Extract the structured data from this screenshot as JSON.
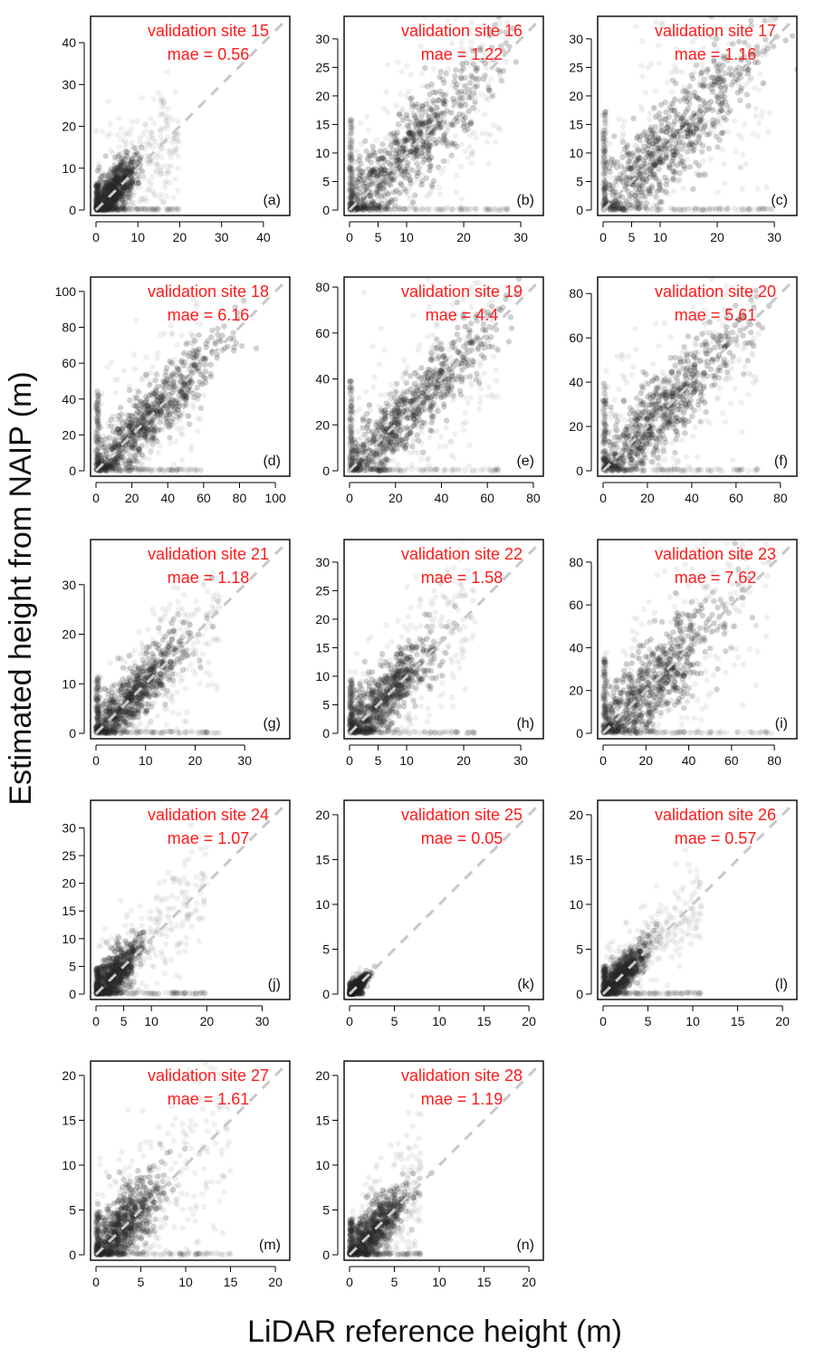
{
  "figure": {
    "ylabel": "Estimated height from NAIP (m)",
    "xlabel": "LiDAR reference height (m)",
    "annotation_color": "#ff1a1a",
    "point_color": "#2b2b2b",
    "identity_line_color": "#c8c8c8"
  },
  "chart_data": [
    {
      "type": "scatter",
      "panel": "(a)",
      "site_label": "validation site 15",
      "mae_label": "mae = 0.56",
      "site": 15,
      "mae": 0.56,
      "xlim": [
        0,
        45
      ],
      "ylim": [
        0,
        45
      ],
      "xticks": [
        0,
        10,
        20,
        30,
        40
      ],
      "yticks": [
        0,
        10,
        20,
        30,
        40
      ],
      "identity_line": true,
      "cluster": {
        "x_mean": 4,
        "spread": 3,
        "tail_x": 20
      }
    },
    {
      "type": "scatter",
      "panel": "(b)",
      "site_label": "validation site 16",
      "mae_label": "mae = 1.22",
      "site": 16,
      "mae": 1.22,
      "xlim": [
        0,
        33
      ],
      "ylim": [
        0,
        33
      ],
      "xticks": [
        0,
        5,
        10,
        20,
        30
      ],
      "yticks": [
        0,
        5,
        10,
        15,
        20,
        25,
        30
      ],
      "identity_line": true,
      "cluster": {
        "x_mean": 10,
        "spread": 4,
        "tail_x": 28
      }
    },
    {
      "type": "scatter",
      "panel": "(c)",
      "site_label": "validation site 17",
      "mae_label": "mae = 1.16",
      "site": 17,
      "mae": 1.16,
      "xlim": [
        0,
        33
      ],
      "ylim": [
        0,
        33
      ],
      "xticks": [
        0,
        5,
        10,
        20,
        30
      ],
      "yticks": [
        0,
        5,
        10,
        15,
        20,
        25,
        30
      ],
      "identity_line": true,
      "cluster": {
        "x_mean": 11,
        "spread": 4,
        "tail_x": 30
      }
    },
    {
      "type": "scatter",
      "panel": "(d)",
      "site_label": "validation site 18",
      "mae_label": "mae = 6.16",
      "site": 18,
      "mae": 6.16,
      "xlim": [
        0,
        105
      ],
      "ylim": [
        0,
        105
      ],
      "xticks": [
        0,
        20,
        40,
        60,
        80,
        100
      ],
      "yticks": [
        0,
        20,
        40,
        60,
        80,
        100
      ],
      "identity_line": true,
      "cluster": {
        "x_mean": 28,
        "spread": 9,
        "tail_x": 60
      }
    },
    {
      "type": "scatter",
      "panel": "(e)",
      "site_label": "validation site 19",
      "mae_label": "mae = 4.4",
      "site": 19,
      "mae": 4.4,
      "xlim": [
        0,
        82
      ],
      "ylim": [
        0,
        82
      ],
      "xticks": [
        0,
        20,
        40,
        60,
        80
      ],
      "yticks": [
        0,
        20,
        40,
        60,
        80
      ],
      "identity_line": true,
      "cluster": {
        "x_mean": 25,
        "spread": 8,
        "tail_x": 65
      }
    },
    {
      "type": "scatter",
      "panel": "(f)",
      "site_label": "validation site 20",
      "mae_label": "mae = 5.61",
      "site": 20,
      "mae": 5.61,
      "xlim": [
        0,
        85
      ],
      "ylim": [
        0,
        85
      ],
      "xticks": [
        0,
        20,
        40,
        60,
        80
      ],
      "yticks": [
        0,
        20,
        40,
        60,
        80
      ],
      "identity_line": true,
      "cluster": {
        "x_mean": 25,
        "spread": 9,
        "tail_x": 70
      }
    },
    {
      "type": "scatter",
      "panel": "(g)",
      "site_label": "validation site 21",
      "mae_label": "mae = 1.18",
      "site": 21,
      "mae": 1.18,
      "xlim": [
        0,
        38
      ],
      "ylim": [
        0,
        38
      ],
      "xticks": [
        0,
        10,
        20,
        30
      ],
      "yticks": [
        0,
        10,
        20,
        30
      ],
      "identity_line": true,
      "cluster": {
        "x_mean": 7,
        "spread": 3,
        "tail_x": 25
      }
    },
    {
      "type": "scatter",
      "panel": "(h)",
      "site_label": "validation site 22",
      "mae_label": "mae = 1.58",
      "site": 22,
      "mae": 1.58,
      "xlim": [
        0,
        33
      ],
      "ylim": [
        0,
        33
      ],
      "xticks": [
        0,
        5,
        10,
        20,
        30
      ],
      "yticks": [
        0,
        5,
        10,
        15,
        20,
        25,
        30
      ],
      "identity_line": true,
      "cluster": {
        "x_mean": 6,
        "spread": 3,
        "tail_x": 22
      }
    },
    {
      "type": "scatter",
      "panel": "(i)",
      "site_label": "validation site 23",
      "mae_label": "mae = 7.62",
      "site": 23,
      "mae": 7.62,
      "xlim": [
        0,
        88
      ],
      "ylim": [
        0,
        88
      ],
      "xticks": [
        0,
        20,
        40,
        60,
        80
      ],
      "yticks": [
        0,
        20,
        40,
        60,
        80
      ],
      "identity_line": true,
      "cluster": {
        "x_mean": 22,
        "spread": 10,
        "tail_x": 80
      }
    },
    {
      "type": "scatter",
      "panel": "(j)",
      "site_label": "validation site 24",
      "mae_label": "mae = 1.07",
      "site": 24,
      "mae": 1.07,
      "xlim": [
        0,
        34
      ],
      "ylim": [
        0,
        34
      ],
      "xticks": [
        0,
        5,
        10,
        20,
        30
      ],
      "yticks": [
        0,
        5,
        10,
        15,
        20,
        25,
        30
      ],
      "identity_line": true,
      "cluster": {
        "x_mean": 3,
        "spread": 2,
        "tail_x": 20
      }
    },
    {
      "type": "scatter",
      "panel": "(k)",
      "site_label": "validation site 25",
      "mae_label": "mae = 0.05",
      "site": 25,
      "mae": 0.05,
      "xlim": [
        0,
        21
      ],
      "ylim": [
        0,
        21
      ],
      "xticks": [
        0,
        5,
        10,
        15,
        20
      ],
      "yticks": [
        0,
        5,
        10,
        15,
        20
      ],
      "identity_line": true,
      "cluster": {
        "x_mean": 0.8,
        "spread": 0.3,
        "tail_x": 1.5
      }
    },
    {
      "type": "scatter",
      "panel": "(l)",
      "site_label": "validation site 26",
      "mae_label": "mae = 0.57",
      "site": 26,
      "mae": 0.57,
      "xlim": [
        0,
        21
      ],
      "ylim": [
        0,
        21
      ],
      "xticks": [
        0,
        5,
        10,
        15,
        20
      ],
      "yticks": [
        0,
        5,
        10,
        15,
        20
      ],
      "identity_line": true,
      "cluster": {
        "x_mean": 2,
        "spread": 1,
        "tail_x": 11
      }
    },
    {
      "type": "scatter",
      "panel": "(m)",
      "site_label": "validation site 27",
      "mae_label": "mae = 1.61",
      "site": 27,
      "mae": 1.61,
      "xlim": [
        0,
        21
      ],
      "ylim": [
        0,
        21
      ],
      "xticks": [
        0,
        5,
        10,
        15,
        20
      ],
      "yticks": [
        0,
        5,
        10,
        15,
        20
      ],
      "identity_line": true,
      "cluster": {
        "x_mean": 3,
        "spread": 2,
        "tail_x": 15
      }
    },
    {
      "type": "scatter",
      "panel": "(n)",
      "site_label": "validation site 28",
      "mae_label": "mae = 1.19",
      "site": 28,
      "mae": 1.19,
      "xlim": [
        0,
        21
      ],
      "ylim": [
        0,
        21
      ],
      "xticks": [
        0,
        5,
        10,
        15,
        20
      ],
      "yticks": [
        0,
        5,
        10,
        15,
        20
      ],
      "identity_line": true,
      "cluster": {
        "x_mean": 2.5,
        "spread": 1.5,
        "tail_x": 8
      }
    }
  ]
}
